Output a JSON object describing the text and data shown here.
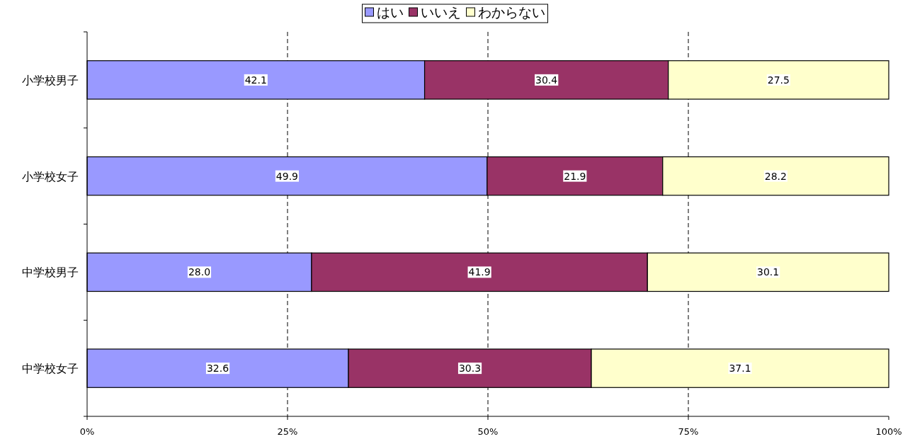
{
  "chart_data": {
    "type": "bar",
    "orientation": "horizontal",
    "stacked": true,
    "categories": [
      "小学校男子",
      "小学校女子",
      "中学校男子",
      "中学校女子"
    ],
    "series": [
      {
        "name": "はい",
        "color": "#9999ff",
        "values": [
          42.1,
          49.9,
          28.0,
          32.6
        ],
        "value_labels": [
          "42.1",
          "49.9",
          "28.0",
          "32.6"
        ]
      },
      {
        "name": "いいえ",
        "color": "#993366",
        "values": [
          30.4,
          21.9,
          41.9,
          30.3
        ],
        "value_labels": [
          "30.4",
          "21.9",
          "41.9",
          "30.3"
        ]
      },
      {
        "name": "わからない",
        "color": "#ffffcc",
        "values": [
          27.5,
          28.2,
          30.1,
          37.1
        ],
        "value_labels": [
          "27.5",
          "28.2",
          "30.1",
          "37.1"
        ]
      }
    ],
    "xlim": [
      0,
      100
    ],
    "xticks": [
      {
        "value": 0,
        "label": "0%"
      },
      {
        "value": 25,
        "label": "25%"
      },
      {
        "value": 50,
        "label": "50%"
      },
      {
        "value": 75,
        "label": "75%"
      },
      {
        "value": 100,
        "label": "100%"
      }
    ],
    "grid": "x",
    "legend": "top"
  }
}
